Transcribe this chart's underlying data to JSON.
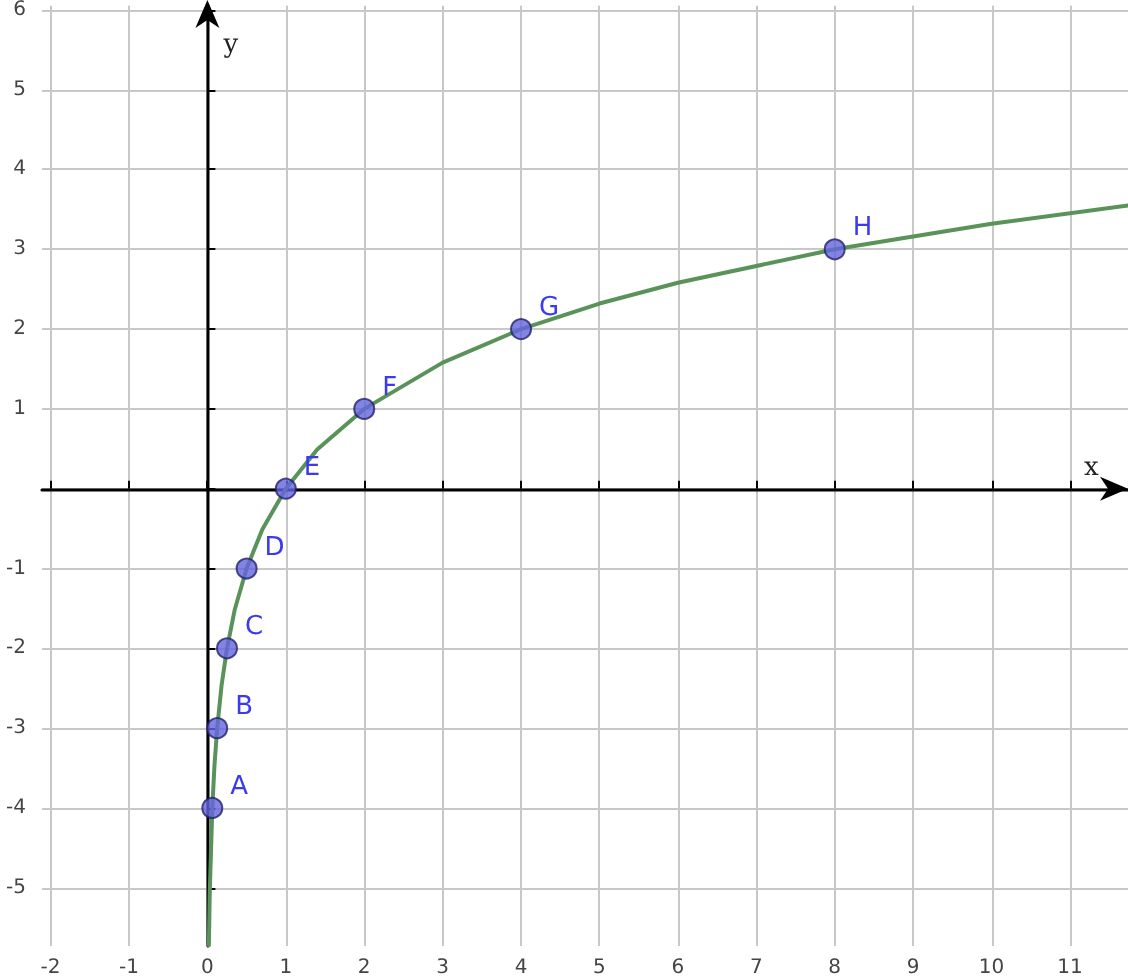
{
  "chart_data": {
    "type": "line",
    "xlabel": "x",
    "ylabel": "y",
    "xlim": [
      -2.11,
      11.74
    ],
    "ylim": [
      -5.73,
      6.05
    ],
    "xticks": [
      -2,
      -1,
      0,
      1,
      2,
      3,
      4,
      5,
      6,
      7,
      8,
      9,
      10,
      11
    ],
    "yticks": [
      -5,
      -4,
      -3,
      -2,
      -1,
      {
        "value": 0,
        "label": null
      },
      1,
      2,
      3,
      4,
      5,
      6
    ],
    "grid": true,
    "series": [
      {
        "color": "#5a935a",
        "marker": "none",
        "x": [
          0.019,
          0.03,
          0.0625,
          0.09,
          0.125,
          0.18,
          0.25,
          0.35,
          0.5,
          0.7,
          1,
          1.4,
          2,
          3,
          4,
          5,
          6,
          8,
          10,
          11.74
        ],
        "values": [
          -5.72,
          -5.06,
          -4,
          -3.47,
          -3,
          -2.47,
          -2,
          -1.51,
          -1,
          -0.51,
          0,
          0.49,
          1,
          1.58,
          2,
          2.32,
          2.58,
          3,
          3.32,
          3.55
        ]
      },
      {
        "type": "scatter",
        "color": "#6464e0",
        "marker": "circle",
        "x": [
          0.0625,
          0.125,
          0.25,
          0.5,
          1,
          2,
          4,
          8
        ],
        "values": [
          -4,
          -3,
          -2,
          -1,
          0,
          1,
          2,
          3
        ]
      }
    ],
    "annotations": [
      {
        "text": "A",
        "x": 0.0625,
        "y": -4
      },
      {
        "text": "B",
        "x": 0.125,
        "y": -3
      },
      {
        "text": "C",
        "x": 0.25,
        "y": -2
      },
      {
        "text": "D",
        "x": 0.5,
        "y": -1
      },
      {
        "text": "E",
        "x": 1,
        "y": 0
      },
      {
        "text": "F",
        "x": 2,
        "y": 1
      },
      {
        "text": "G",
        "x": 4,
        "y": 2
      },
      {
        "text": "H",
        "x": 8,
        "y": 3
      }
    ]
  }
}
